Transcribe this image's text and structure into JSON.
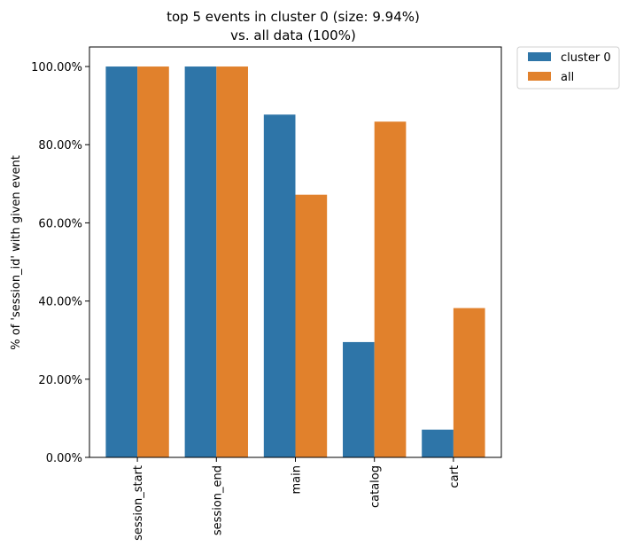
{
  "chart_data": {
    "type": "bar",
    "title": [
      "top 5 events in cluster 0 (size: 9.94%)",
      "vs. all data (100%)"
    ],
    "xlabel": "",
    "ylabel": "% of 'session_id' with given event",
    "categories": [
      "session_start",
      "session_end",
      "main",
      "catalog",
      "cart"
    ],
    "series": [
      {
        "name": "cluster 0",
        "color": "#2e75a8",
        "values": [
          1.0,
          1.0,
          0.877,
          0.295,
          0.071
        ]
      },
      {
        "name": "all",
        "color": "#e1812c",
        "values": [
          1.0,
          1.0,
          0.672,
          0.859,
          0.382
        ]
      }
    ],
    "ylim": [
      0,
      1.0
    ],
    "yticks": [
      0.0,
      0.2,
      0.4,
      0.6,
      0.8,
      1.0
    ],
    "ytick_labels": [
      "0.00%",
      "20.00%",
      "40.00%",
      "60.00%",
      "80.00%",
      "100.00%"
    ],
    "grid": false,
    "legend_placement": "outside-top-right"
  }
}
